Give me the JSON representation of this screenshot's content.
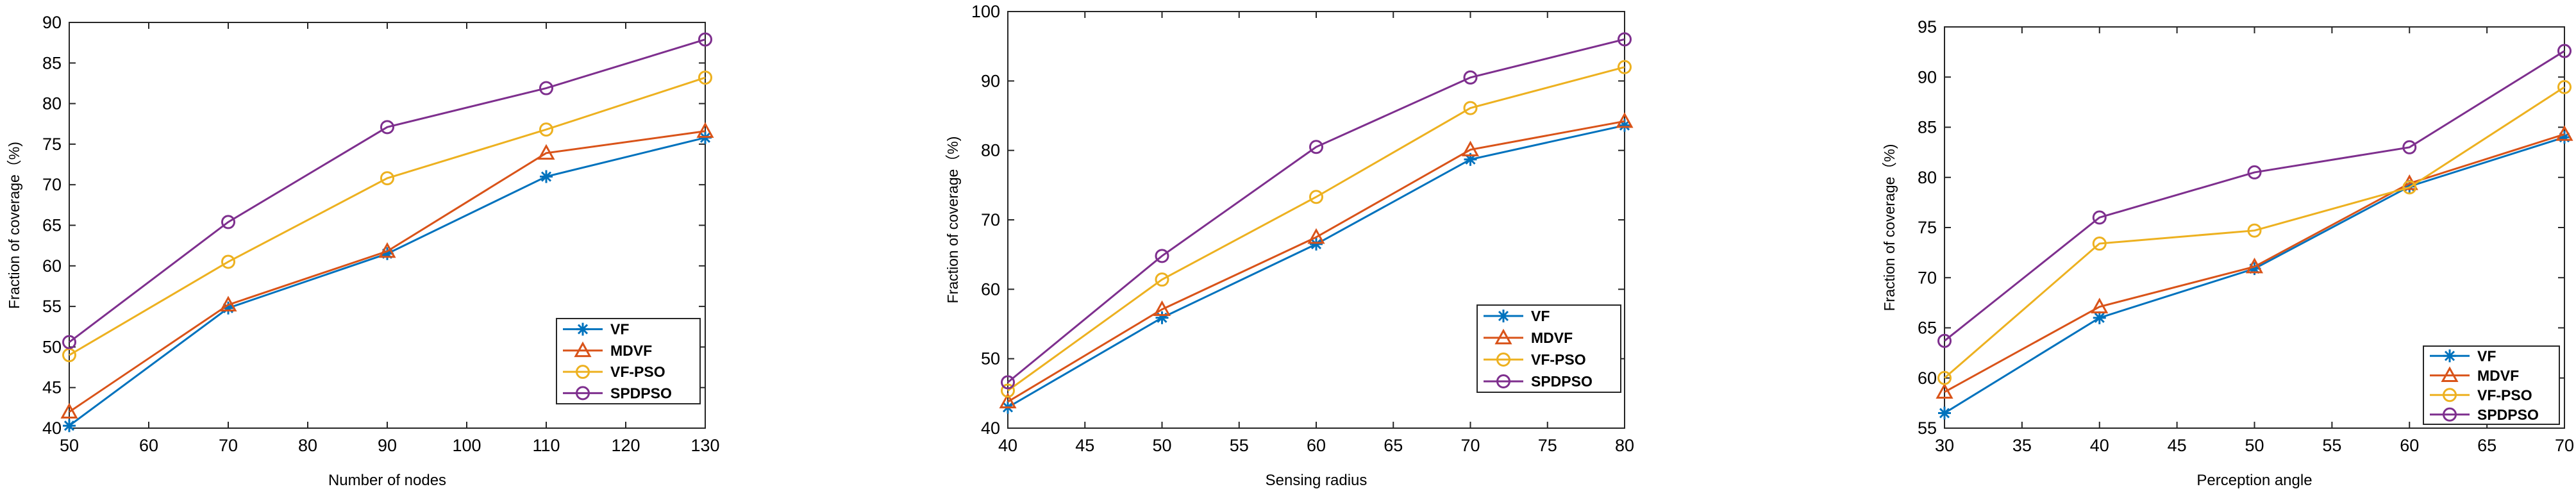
{
  "chart_data": [
    {
      "type": "line",
      "title": "",
      "xlabel": "Number of nodes",
      "ylabel": "Fraction of coverage（%)",
      "x": [
        50,
        70,
        90,
        110,
        130
      ],
      "xlim": [
        50,
        130
      ],
      "ylim": [
        40,
        90
      ],
      "xticks": [
        50,
        60,
        70,
        80,
        90,
        100,
        110,
        120,
        130
      ],
      "yticks": [
        40,
        45,
        50,
        55,
        60,
        65,
        70,
        75,
        80,
        85,
        90
      ],
      "grid": false,
      "legend_position": "bottom-right",
      "series": [
        {
          "name": "VF",
          "marker": "star",
          "color": "#0072BD",
          "values": [
            40.3,
            54.8,
            61.5,
            71.0,
            75.8
          ]
        },
        {
          "name": "MDVF",
          "marker": "triangle",
          "color": "#D95319",
          "values": [
            42.0,
            55.2,
            61.8,
            73.9,
            76.6
          ]
        },
        {
          "name": "VF-PSO",
          "marker": "circle",
          "color": "#EDB120",
          "values": [
            49.0,
            60.5,
            70.8,
            76.8,
            83.2
          ]
        },
        {
          "name": "SPDPSO",
          "marker": "circle",
          "color": "#7E2F8E",
          "values": [
            50.6,
            65.4,
            77.1,
            81.9,
            87.9
          ]
        }
      ]
    },
    {
      "type": "line",
      "title": "",
      "xlabel": "Sensing radius",
      "ylabel": "Fraction of coverage（%)",
      "x": [
        40,
        50,
        60,
        70,
        80
      ],
      "xlim": [
        40,
        80
      ],
      "ylim": [
        40,
        100
      ],
      "xticks": [
        40,
        45,
        50,
        55,
        60,
        65,
        70,
        75,
        80
      ],
      "yticks": [
        40,
        50,
        60,
        70,
        80,
        90,
        100
      ],
      "grid": false,
      "legend_position": "bottom-right",
      "series": [
        {
          "name": "VF",
          "marker": "star",
          "color": "#0072BD",
          "values": [
            43.0,
            55.9,
            66.5,
            78.7,
            83.6
          ]
        },
        {
          "name": "MDVF",
          "marker": "triangle",
          "color": "#D95319",
          "values": [
            43.8,
            57.1,
            67.5,
            80.1,
            84.2
          ]
        },
        {
          "name": "VF-PSO",
          "marker": "circle",
          "color": "#EDB120",
          "values": [
            45.4,
            61.4,
            73.3,
            86.1,
            92.0
          ]
        },
        {
          "name": "SPDPSO",
          "marker": "circle",
          "color": "#7E2F8E",
          "values": [
            46.6,
            64.8,
            80.5,
            90.5,
            96.0
          ]
        }
      ]
    },
    {
      "type": "line",
      "title": "",
      "xlabel": "Perception angle",
      "ylabel": "Fraction of coverage（%)",
      "x": [
        30,
        40,
        50,
        60,
        70
      ],
      "xlim": [
        30,
        70
      ],
      "ylim": [
        55,
        95
      ],
      "xticks": [
        30,
        35,
        40,
        45,
        50,
        55,
        60,
        65,
        70
      ],
      "yticks": [
        55,
        60,
        65,
        70,
        75,
        80,
        85,
        90,
        95
      ],
      "grid": false,
      "legend_position": "bottom-right",
      "series": [
        {
          "name": "VF",
          "marker": "star",
          "color": "#0072BD",
          "values": [
            56.5,
            66.0,
            70.9,
            79.1,
            84.0
          ]
        },
        {
          "name": "MDVF",
          "marker": "triangle",
          "color": "#D95319",
          "values": [
            58.6,
            67.1,
            71.1,
            79.4,
            84.3
          ]
        },
        {
          "name": "VF-PSO",
          "marker": "circle",
          "color": "#EDB120",
          "values": [
            60.0,
            73.4,
            74.7,
            79.0,
            89.0
          ]
        },
        {
          "name": "SPDPSO",
          "marker": "circle",
          "color": "#7E2F8E",
          "values": [
            63.7,
            76.0,
            80.5,
            83.0,
            92.6
          ]
        }
      ]
    }
  ]
}
